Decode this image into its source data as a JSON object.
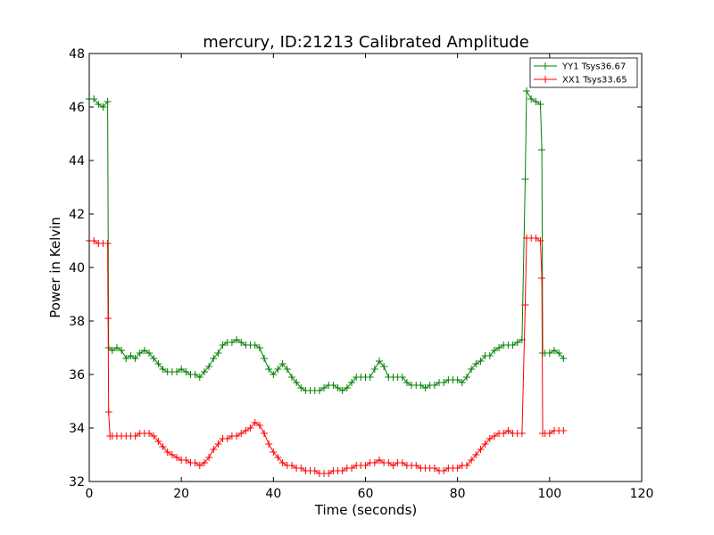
{
  "chart_data": {
    "type": "line",
    "title": "mercury, ID:21213 Calibrated Amplitude",
    "xlabel": "Time (seconds)",
    "ylabel": "Power in Kelvin",
    "xlim": [
      0,
      120
    ],
    "ylim": [
      32,
      48
    ],
    "xticks": [
      0,
      20,
      40,
      60,
      80,
      100,
      120
    ],
    "yticks": [
      32,
      34,
      36,
      38,
      40,
      42,
      44,
      46,
      48
    ],
    "grid": false,
    "legend_position": "top-right",
    "marker": "plus",
    "series": [
      {
        "name": "YY1 Tsys36.67",
        "color": "#008000",
        "points": [
          [
            0,
            46.3
          ],
          [
            1,
            46.3
          ],
          [
            2,
            46.1
          ],
          [
            3,
            46.0
          ],
          [
            4,
            46.2
          ],
          [
            4.2,
            37.0
          ],
          [
            5,
            36.9
          ],
          [
            6,
            37.0
          ],
          [
            7,
            36.9
          ],
          [
            8,
            36.6
          ],
          [
            9,
            36.7
          ],
          [
            10,
            36.6
          ],
          [
            11,
            36.8
          ],
          [
            12,
            36.9
          ],
          [
            13,
            36.8
          ],
          [
            14,
            36.6
          ],
          [
            15,
            36.4
          ],
          [
            16,
            36.2
          ],
          [
            17,
            36.1
          ],
          [
            18,
            36.1
          ],
          [
            19,
            36.1
          ],
          [
            20,
            36.2
          ],
          [
            21,
            36.1
          ],
          [
            22,
            36.0
          ],
          [
            23,
            36.0
          ],
          [
            24,
            35.9
          ],
          [
            25,
            36.1
          ],
          [
            26,
            36.3
          ],
          [
            27,
            36.6
          ],
          [
            28,
            36.8
          ],
          [
            29,
            37.1
          ],
          [
            30,
            37.2
          ],
          [
            31,
            37.2
          ],
          [
            32,
            37.3
          ],
          [
            33,
            37.2
          ],
          [
            34,
            37.1
          ],
          [
            35,
            37.1
          ],
          [
            36,
            37.1
          ],
          [
            37,
            37.0
          ],
          [
            38,
            36.6
          ],
          [
            39,
            36.2
          ],
          [
            40,
            36.0
          ],
          [
            41,
            36.2
          ],
          [
            42,
            36.4
          ],
          [
            43,
            36.2
          ],
          [
            44,
            35.9
          ],
          [
            45,
            35.7
          ],
          [
            46,
            35.5
          ],
          [
            47,
            35.4
          ],
          [
            48,
            35.4
          ],
          [
            49,
            35.4
          ],
          [
            50,
            35.4
          ],
          [
            51,
            35.5
          ],
          [
            52,
            35.6
          ],
          [
            53,
            35.6
          ],
          [
            54,
            35.5
          ],
          [
            55,
            35.4
          ],
          [
            56,
            35.5
          ],
          [
            57,
            35.7
          ],
          [
            58,
            35.9
          ],
          [
            59,
            35.9
          ],
          [
            60,
            35.9
          ],
          [
            61,
            35.9
          ],
          [
            62,
            36.2
          ],
          [
            63,
            36.5
          ],
          [
            64,
            36.3
          ],
          [
            65,
            35.9
          ],
          [
            66,
            35.9
          ],
          [
            67,
            35.9
          ],
          [
            68,
            35.9
          ],
          [
            69,
            35.7
          ],
          [
            70,
            35.6
          ],
          [
            71,
            35.6
          ],
          [
            72,
            35.6
          ],
          [
            73,
            35.5
          ],
          [
            74,
            35.6
          ],
          [
            75,
            35.6
          ],
          [
            76,
            35.7
          ],
          [
            77,
            35.7
          ],
          [
            78,
            35.8
          ],
          [
            79,
            35.8
          ],
          [
            80,
            35.8
          ],
          [
            81,
            35.7
          ],
          [
            82,
            35.9
          ],
          [
            83,
            36.2
          ],
          [
            84,
            36.4
          ],
          [
            85,
            36.5
          ],
          [
            86,
            36.7
          ],
          [
            87,
            36.7
          ],
          [
            88,
            36.9
          ],
          [
            89,
            37.0
          ],
          [
            90,
            37.1
          ],
          [
            91,
            37.1
          ],
          [
            92,
            37.1
          ],
          [
            93,
            37.2
          ],
          [
            94,
            37.3
          ],
          [
            94.7,
            43.3
          ],
          [
            95,
            46.6
          ],
          [
            96,
            46.3
          ],
          [
            97,
            46.2
          ],
          [
            98,
            46.1
          ],
          [
            98.3,
            44.4
          ],
          [
            98.5,
            36.8
          ],
          [
            99,
            36.8
          ],
          [
            100,
            36.8
          ],
          [
            101,
            36.9
          ],
          [
            102,
            36.8
          ],
          [
            103,
            36.6
          ]
        ]
      },
      {
        "name": "XX1 Tsys33.65",
        "color": "#ff0000",
        "points": [
          [
            0,
            41.0
          ],
          [
            1,
            41.0
          ],
          [
            2,
            40.9
          ],
          [
            3,
            40.9
          ],
          [
            4,
            40.9
          ],
          [
            4.1,
            38.1
          ],
          [
            4.2,
            34.6
          ],
          [
            4.5,
            33.7
          ],
          [
            5,
            33.7
          ],
          [
            6,
            33.7
          ],
          [
            7,
            33.7
          ],
          [
            8,
            33.7
          ],
          [
            9,
            33.7
          ],
          [
            10,
            33.7
          ],
          [
            11,
            33.8
          ],
          [
            12,
            33.8
          ],
          [
            13,
            33.8
          ],
          [
            14,
            33.7
          ],
          [
            15,
            33.5
          ],
          [
            16,
            33.3
          ],
          [
            17,
            33.1
          ],
          [
            18,
            33.0
          ],
          [
            19,
            32.9
          ],
          [
            20,
            32.8
          ],
          [
            21,
            32.8
          ],
          [
            22,
            32.7
          ],
          [
            23,
            32.7
          ],
          [
            24,
            32.6
          ],
          [
            25,
            32.7
          ],
          [
            26,
            32.9
          ],
          [
            27,
            33.2
          ],
          [
            28,
            33.4
          ],
          [
            29,
            33.6
          ],
          [
            30,
            33.6
          ],
          [
            31,
            33.7
          ],
          [
            32,
            33.7
          ],
          [
            33,
            33.8
          ],
          [
            34,
            33.9
          ],
          [
            35,
            34.0
          ],
          [
            36,
            34.2
          ],
          [
            37,
            34.1
          ],
          [
            38,
            33.8
          ],
          [
            39,
            33.4
          ],
          [
            40,
            33.1
          ],
          [
            41,
            32.9
          ],
          [
            42,
            32.7
          ],
          [
            43,
            32.6
          ],
          [
            44,
            32.6
          ],
          [
            45,
            32.5
          ],
          [
            46,
            32.5
          ],
          [
            47,
            32.4
          ],
          [
            48,
            32.4
          ],
          [
            49,
            32.4
          ],
          [
            50,
            32.3
          ],
          [
            51,
            32.3
          ],
          [
            52,
            32.3
          ],
          [
            53,
            32.4
          ],
          [
            54,
            32.4
          ],
          [
            55,
            32.4
          ],
          [
            56,
            32.5
          ],
          [
            57,
            32.5
          ],
          [
            58,
            32.6
          ],
          [
            59,
            32.6
          ],
          [
            60,
            32.6
          ],
          [
            61,
            32.7
          ],
          [
            62,
            32.7
          ],
          [
            63,
            32.8
          ],
          [
            64,
            32.7
          ],
          [
            65,
            32.7
          ],
          [
            66,
            32.6
          ],
          [
            67,
            32.7
          ],
          [
            68,
            32.7
          ],
          [
            69,
            32.6
          ],
          [
            70,
            32.6
          ],
          [
            71,
            32.6
          ],
          [
            72,
            32.5
          ],
          [
            73,
            32.5
          ],
          [
            74,
            32.5
          ],
          [
            75,
            32.5
          ],
          [
            76,
            32.4
          ],
          [
            77,
            32.4
          ],
          [
            78,
            32.5
          ],
          [
            79,
            32.5
          ],
          [
            80,
            32.5
          ],
          [
            81,
            32.6
          ],
          [
            82,
            32.6
          ],
          [
            83,
            32.8
          ],
          [
            84,
            33.0
          ],
          [
            85,
            33.2
          ],
          [
            86,
            33.4
          ],
          [
            87,
            33.6
          ],
          [
            88,
            33.7
          ],
          [
            89,
            33.8
          ],
          [
            90,
            33.8
          ],
          [
            91,
            33.9
          ],
          [
            92,
            33.8
          ],
          [
            93,
            33.8
          ],
          [
            94,
            33.8
          ],
          [
            94.7,
            38.6
          ],
          [
            95,
            41.1
          ],
          [
            96,
            41.1
          ],
          [
            97,
            41.1
          ],
          [
            98,
            41.0
          ],
          [
            98.3,
            39.6
          ],
          [
            98.5,
            33.8
          ],
          [
            99,
            33.8
          ],
          [
            100,
            33.8
          ],
          [
            101,
            33.9
          ],
          [
            102,
            33.9
          ],
          [
            103,
            33.9
          ]
        ]
      }
    ]
  }
}
